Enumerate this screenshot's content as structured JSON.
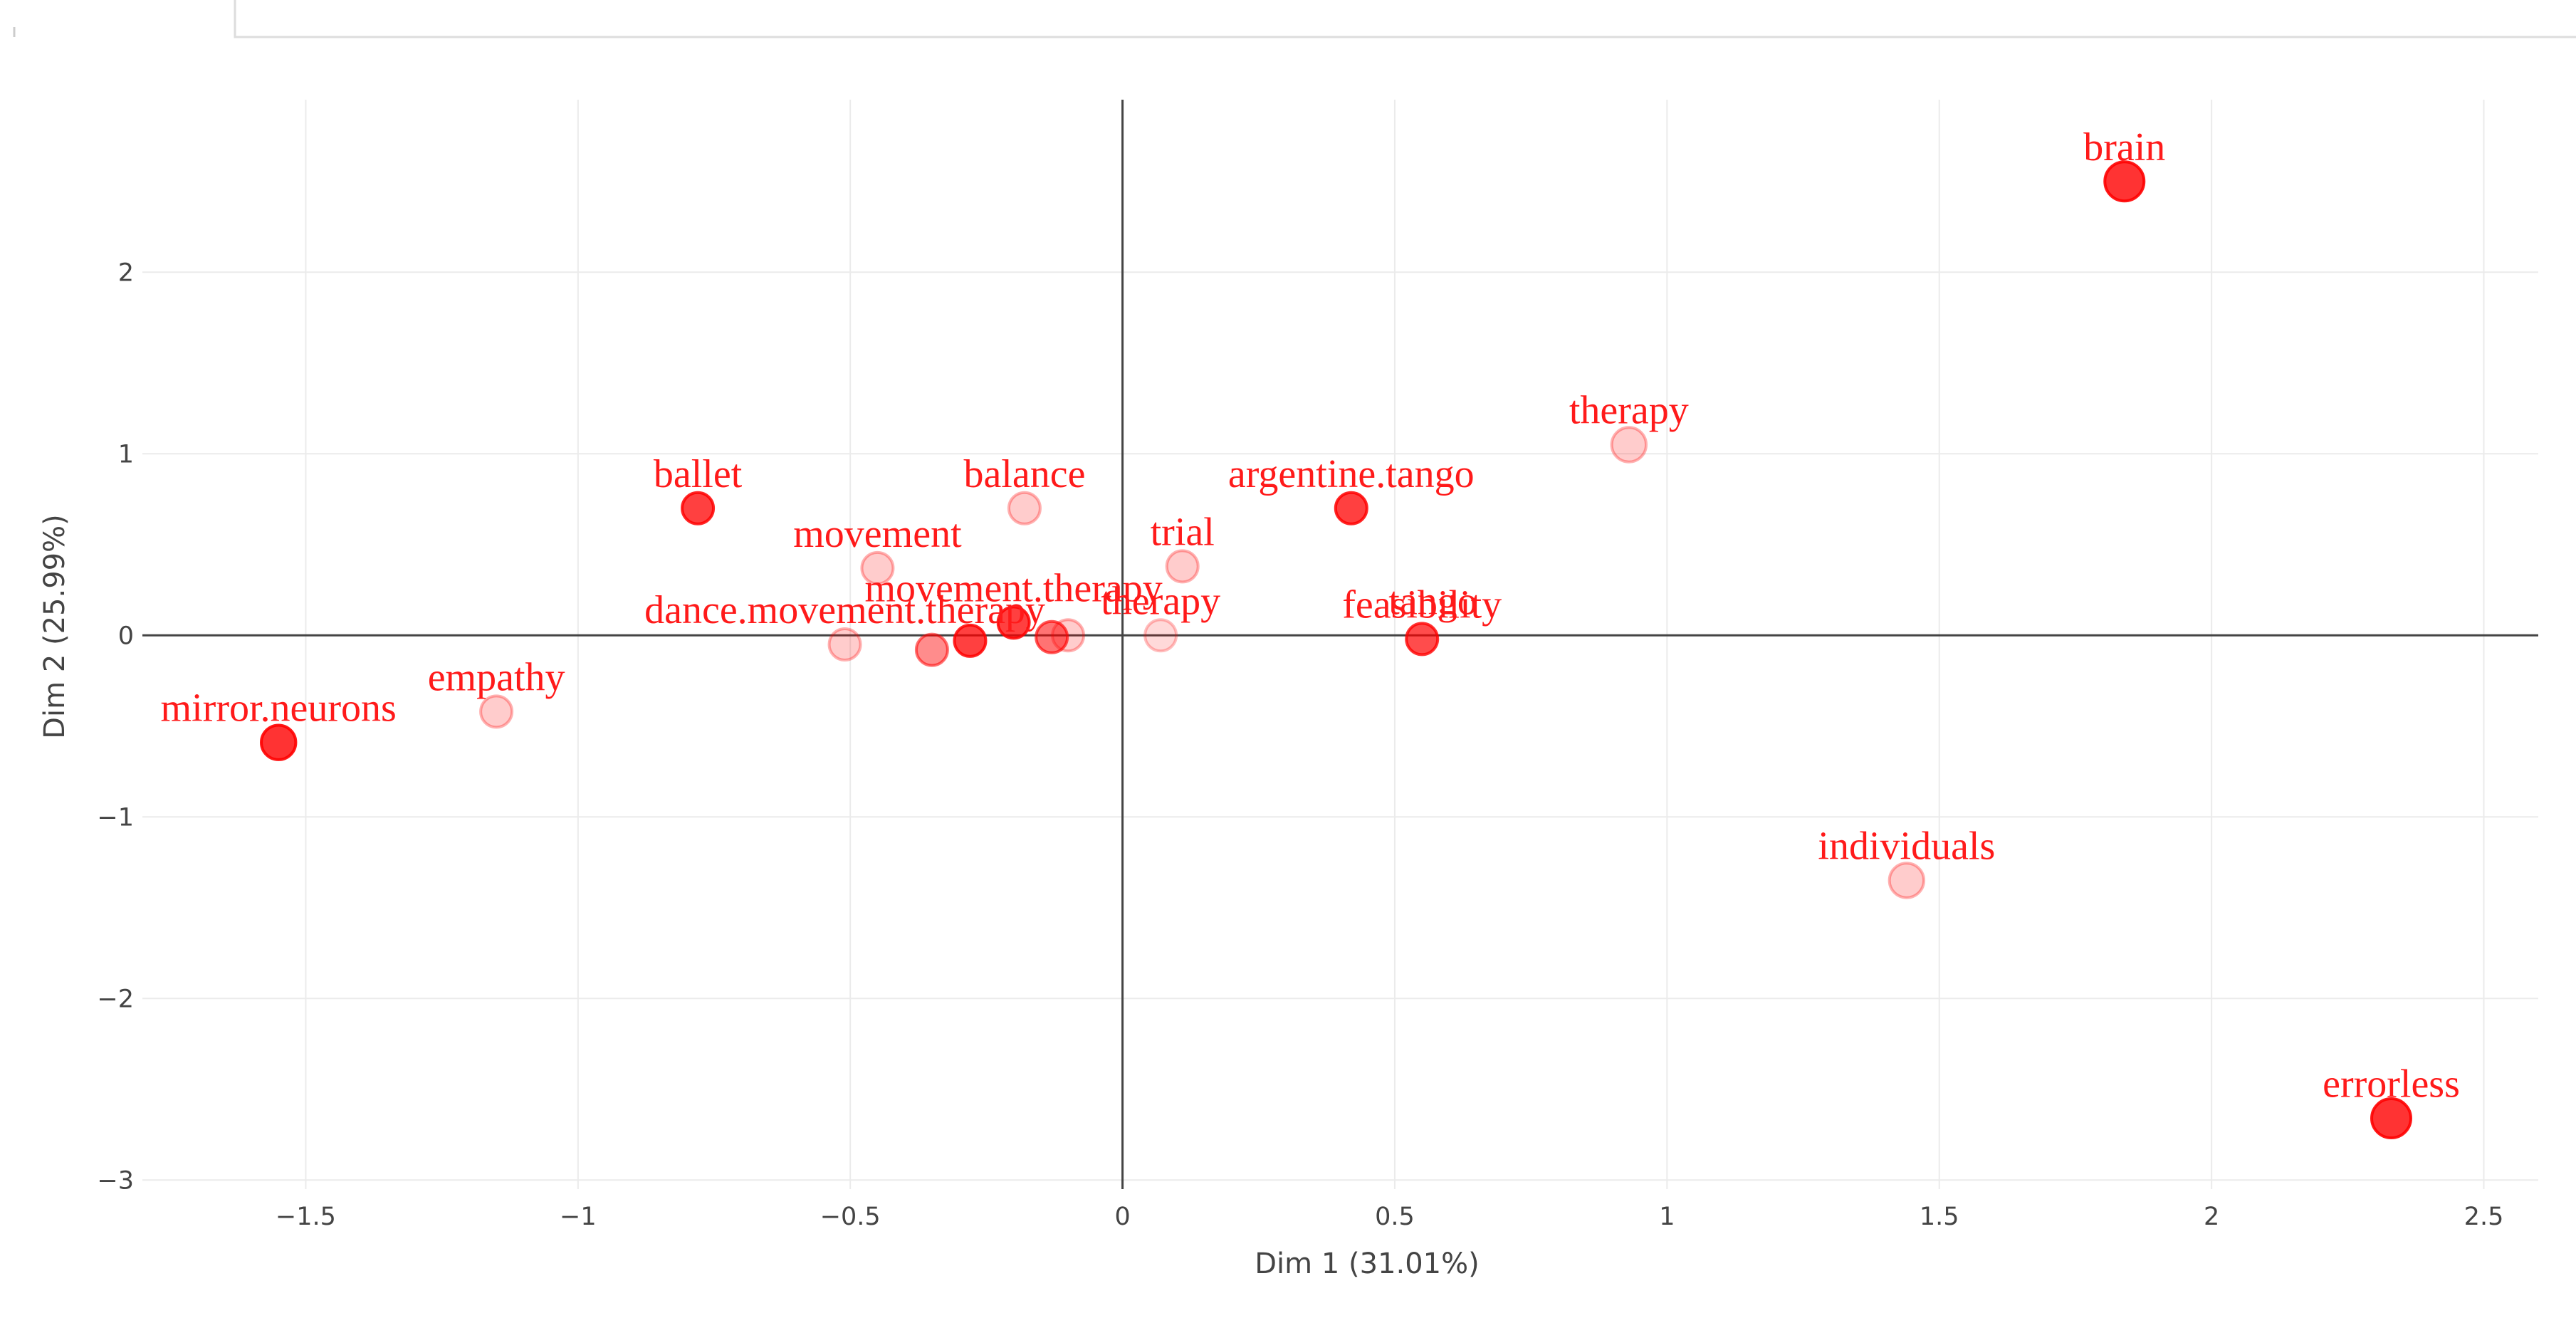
{
  "chart_data": {
    "type": "scatter",
    "title": "",
    "xlabel": "Dim 1 (31.01%)",
    "ylabel": "Dim 2 (25.99%)",
    "xlim": [
      -1.8,
      2.6
    ],
    "ylim": [
      -3.05,
      2.95
    ],
    "x_ticks": [
      -1.5,
      -1,
      -0.5,
      0,
      0.5,
      1,
      1.5,
      2,
      2.5
    ],
    "x_tick_labels": [
      "−1.5",
      "−1",
      "−0.5",
      "0",
      "0.5",
      "1",
      "1.5",
      "2",
      "2.5"
    ],
    "y_ticks": [
      -3,
      -2,
      -1,
      0,
      1,
      2
    ],
    "y_tick_labels": [
      "−3",
      "−2",
      "−1",
      "0",
      "1",
      "2"
    ],
    "grid": true,
    "zero_lines": true,
    "marker_color": "#ff0000",
    "label_color": "#ff1a1a",
    "points": [
      {
        "label": "brain",
        "x": 1.84,
        "y": 2.5,
        "opacity": 0.8,
        "size": 1.25
      },
      {
        "label": "therapy",
        "x": 0.93,
        "y": 1.05,
        "opacity": 0.2,
        "size": 1.1
      },
      {
        "label": "ballet",
        "x": -0.78,
        "y": 0.7,
        "opacity": 0.75,
        "size": 1.0
      },
      {
        "label": "balance",
        "x": -0.18,
        "y": 0.7,
        "opacity": 0.2,
        "size": 1.0
      },
      {
        "label": "argentine.tango",
        "x": 0.42,
        "y": 0.7,
        "opacity": 0.75,
        "size": 1.0
      },
      {
        "label": "movement",
        "x": -0.45,
        "y": 0.37,
        "opacity": 0.2,
        "size": 1.0
      },
      {
        "label": "trial",
        "x": 0.11,
        "y": 0.38,
        "opacity": 0.2,
        "size": 1.0
      },
      {
        "label": "dance.movement.therapy",
        "x": -0.51,
        "y": -0.05,
        "opacity": 0.2,
        "size": 1.0
      },
      {
        "label": "",
        "x": -0.35,
        "y": -0.08,
        "opacity": 0.45,
        "size": 1.0
      },
      {
        "label": "",
        "x": -0.28,
        "y": -0.03,
        "opacity": 0.75,
        "size": 1.0
      },
      {
        "label": "movement.therapy",
        "x": -0.2,
        "y": 0.07,
        "opacity": 0.75,
        "size": 1.0
      },
      {
        "label": "",
        "x": -0.13,
        "y": -0.01,
        "opacity": 0.55,
        "size": 1.0
      },
      {
        "label": "",
        "x": -0.1,
        "y": 0.0,
        "opacity": 0.2,
        "size": 1.0
      },
      {
        "label": "therapy",
        "x": 0.07,
        "y": 0.0,
        "opacity": 0.15,
        "size": 1.0
      },
      {
        "label": "feasibility",
        "x": 0.55,
        "y": -0.02,
        "opacity": 0.7,
        "size": 1.0
      },
      {
        "label": "tango",
        "x": 0.57,
        "y": 0.0,
        "opacity": 0.0,
        "size": 1.0
      },
      {
        "label": "empathy",
        "x": -1.15,
        "y": -0.42,
        "opacity": 0.2,
        "size": 1.0
      },
      {
        "label": "mirror.neurons",
        "x": -1.55,
        "y": -0.59,
        "opacity": 0.8,
        "size": 1.1
      },
      {
        "label": "individuals",
        "x": 1.44,
        "y": -1.35,
        "opacity": 0.2,
        "size": 1.1
      },
      {
        "label": "errorless",
        "x": 2.33,
        "y": -2.66,
        "opacity": 0.8,
        "size": 1.25
      }
    ]
  }
}
